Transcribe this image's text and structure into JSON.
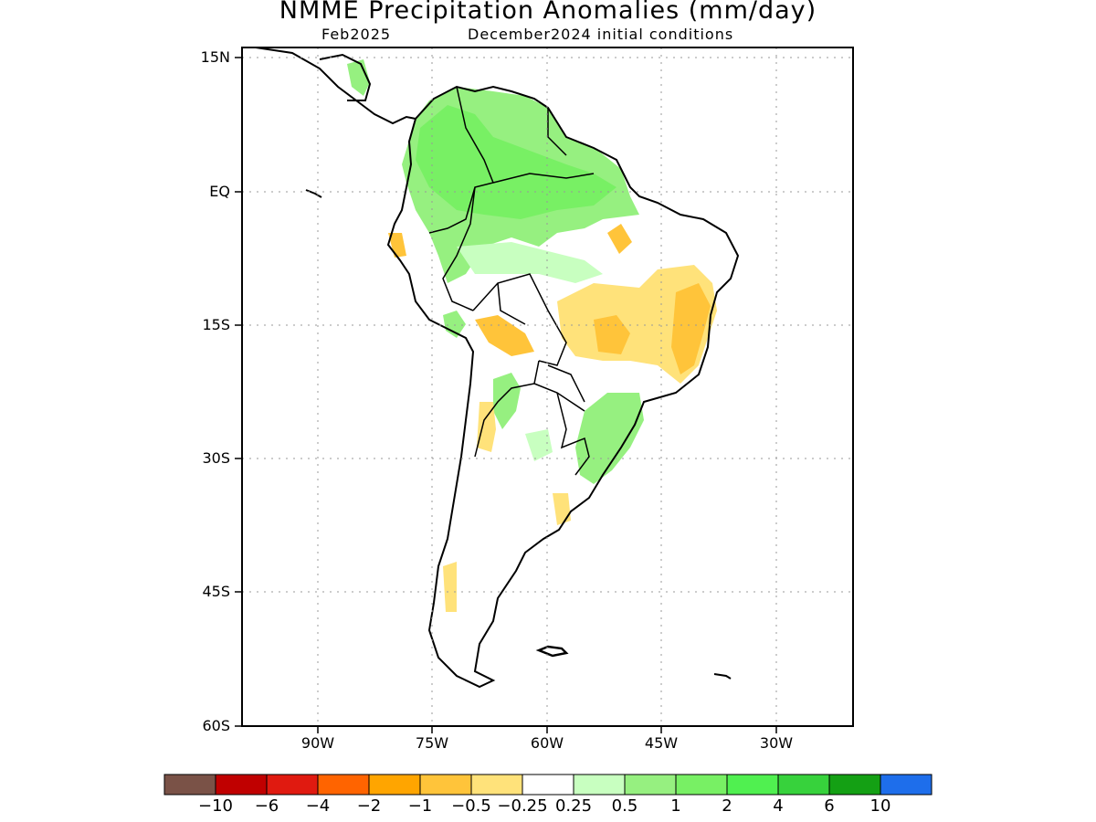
{
  "title": "NMME Precipitation Anomalies (mm/day)",
  "subtitle_left": "Feb2025",
  "subtitle_right": "December2024 initial conditions",
  "lat_ticks": [
    {
      "id": "15n",
      "label": "15N"
    },
    {
      "id": "eq",
      "label": "EQ"
    },
    {
      "id": "15s",
      "label": "15S"
    },
    {
      "id": "30s",
      "label": "30S"
    },
    {
      "id": "45s",
      "label": "45S"
    },
    {
      "id": "60s",
      "label": "60S"
    }
  ],
  "lon_ticks": [
    {
      "id": "90w",
      "label": "90W"
    },
    {
      "id": "75w",
      "label": "75W"
    },
    {
      "id": "60w",
      "label": "60W"
    },
    {
      "id": "45w",
      "label": "45W"
    },
    {
      "id": "30w",
      "label": "30W"
    }
  ],
  "colorbar": {
    "colors": [
      "#7a5247",
      "#c00000",
      "#e01a10",
      "#ff6400",
      "#ffa500",
      "#ffc43a",
      "#ffe27a",
      "#ffffff",
      "#c8ffc0",
      "#96f080",
      "#78f064",
      "#50f050",
      "#37d23c",
      "#14a014",
      "#1e6eeb"
    ],
    "labels": [
      "−10",
      "−6",
      "−4",
      "−2",
      "−1",
      "−0.5",
      "−0.25",
      "0.25",
      "0.5",
      "1",
      "2",
      "4",
      "6",
      "10"
    ]
  },
  "grid": "dotted"
}
